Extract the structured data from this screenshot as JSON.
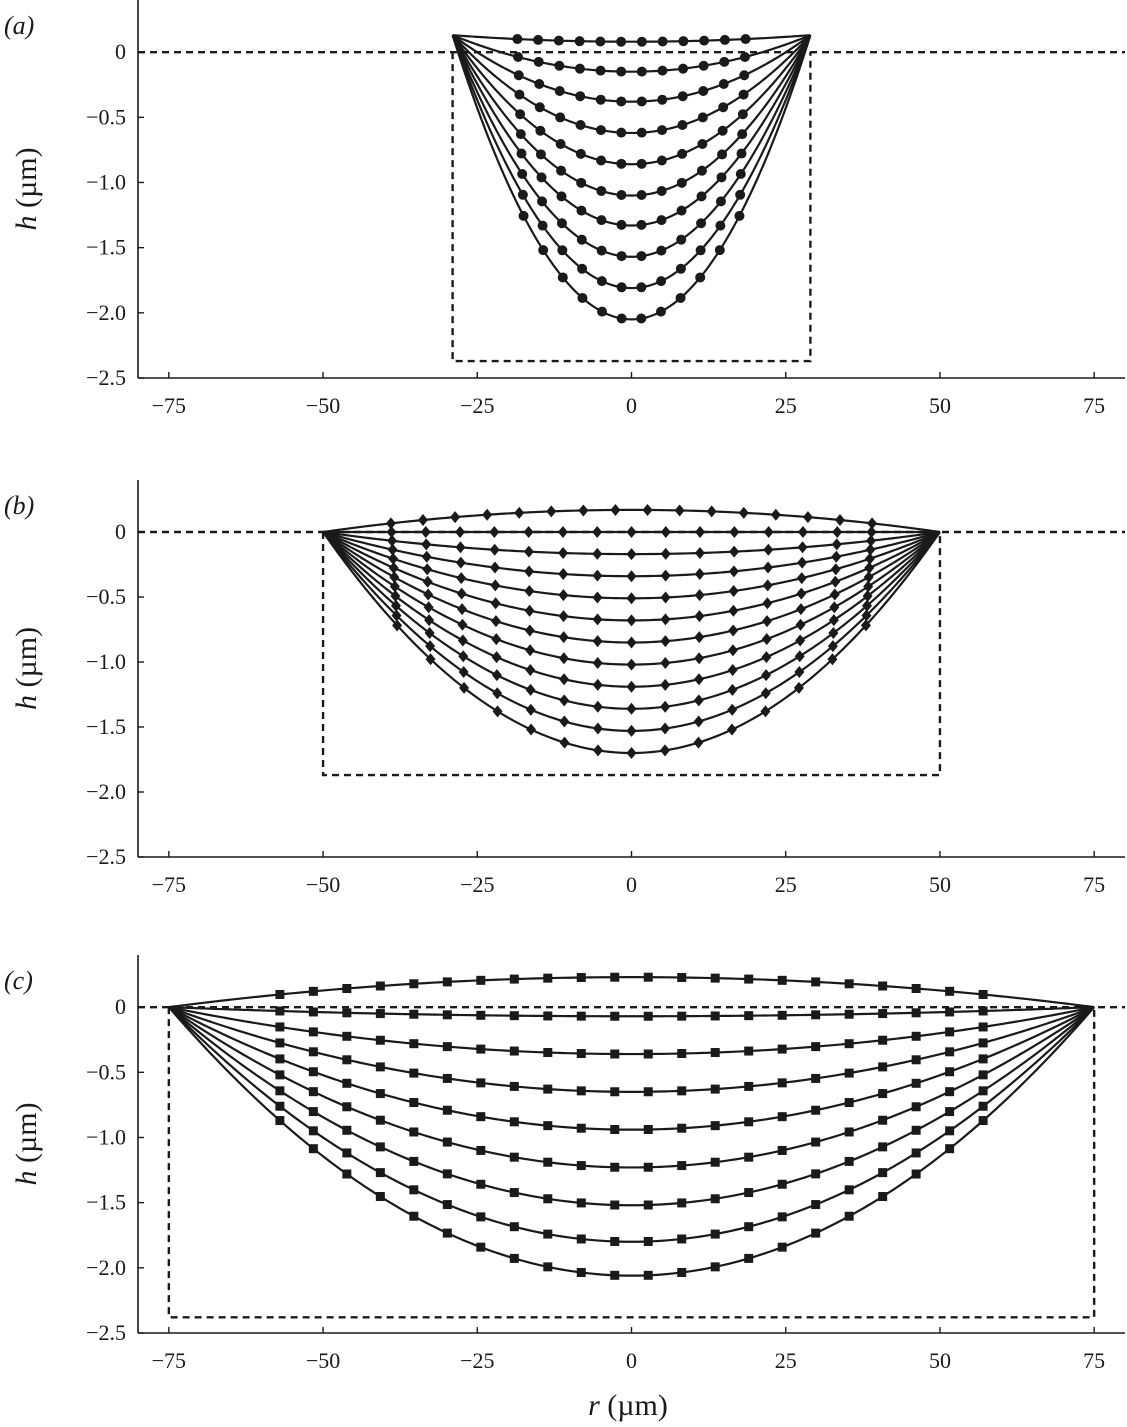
{
  "figure": {
    "xlabel": "r (µm)",
    "ylabel": "h (µm)"
  },
  "chart_data": [
    {
      "type": "line",
      "panel": "(a)",
      "marker": "circle",
      "xlabel": "",
      "ylabel": "h (µm)",
      "xlim": [
        -80,
        80
      ],
      "ylim": [
        -2.5,
        0.4
      ],
      "xticks": [
        -75,
        -50,
        -25,
        0,
        25,
        50,
        75
      ],
      "xtick_labels": [
        "−75",
        "−50",
        "−25",
        "0",
        "25",
        "50",
        "75"
      ],
      "yticks": [
        0,
        -0.5,
        -1.0,
        -1.5,
        -2.0,
        -2.5
      ],
      "ytick_labels": [
        "0",
        "−0.5",
        "−1.0",
        "−1.5",
        "−2.0",
        "−2.5"
      ],
      "reference_box": {
        "x_left": -29,
        "x_right": 29,
        "y_top": 0,
        "y_bottom": -2.37
      },
      "contact_radius": 29,
      "pinned_height": 0.13,
      "marker_span": {
        "first_curve": 18.5,
        "last_curve": 17.5
      },
      "marker_spacing": 3.1,
      "series": [
        {
          "center_depth": 0.08
        },
        {
          "center_depth": -0.15
        },
        {
          "center_depth": -0.38
        },
        {
          "center_depth": -0.62
        },
        {
          "center_depth": -0.86
        },
        {
          "center_depth": -1.1
        },
        {
          "center_depth": -1.33
        },
        {
          "center_depth": -1.57
        },
        {
          "center_depth": -1.81
        },
        {
          "center_depth": -2.05
        }
      ]
    },
    {
      "type": "line",
      "panel": "(b)",
      "marker": "diamond",
      "xlabel": "",
      "ylabel": "h (µm)",
      "xlim": [
        -80,
        80
      ],
      "ylim": [
        -2.5,
        0.4
      ],
      "xticks": [
        -75,
        -50,
        -25,
        0,
        25,
        50,
        75
      ],
      "xtick_labels": [
        "−75",
        "−50",
        "−25",
        "0",
        "25",
        "50",
        "75"
      ],
      "yticks": [
        0,
        -0.5,
        -1.0,
        -1.5,
        -2.0,
        -2.5
      ],
      "ytick_labels": [
        "0",
        "−0.5",
        "−1.0",
        "−1.5",
        "−2.0",
        "−2.5"
      ],
      "reference_box": {
        "x_left": -50,
        "x_right": 50,
        "y_top": 0,
        "y_bottom": -1.87
      },
      "contact_radius": 50,
      "pinned_height": 0.0,
      "marker_span": {
        "first_curve": 39.0,
        "last_curve": 38.0
      },
      "marker_spacing": 5.2,
      "series": [
        {
          "center_depth": 0.17
        },
        {
          "center_depth": 0.0
        },
        {
          "center_depth": -0.17
        },
        {
          "center_depth": -0.34
        },
        {
          "center_depth": -0.51
        },
        {
          "center_depth": -0.68
        },
        {
          "center_depth": -0.85
        },
        {
          "center_depth": -1.02
        },
        {
          "center_depth": -1.19
        },
        {
          "center_depth": -1.36
        },
        {
          "center_depth": -1.53
        },
        {
          "center_depth": -1.7
        }
      ]
    },
    {
      "type": "line",
      "panel": "(c)",
      "marker": "square",
      "xlabel": "r (µm)",
      "ylabel": "h (µm)",
      "xlim": [
        -80,
        80
      ],
      "ylim": [
        -2.5,
        0.4
      ],
      "xticks": [
        -75,
        -50,
        -25,
        0,
        25,
        50,
        75
      ],
      "xtick_labels": [
        "−75",
        "−50",
        "−25",
        "0",
        "25",
        "50",
        "75"
      ],
      "yticks": [
        0,
        -0.5,
        -1.0,
        -1.5,
        -2.0,
        -2.5
      ],
      "ytick_labels": [
        "0",
        "−0.5",
        "−1.0",
        "−1.5",
        "−2.0",
        "−2.5"
      ],
      "reference_box": {
        "x_left": -75,
        "x_right": 75,
        "y_top": 0,
        "y_bottom": -2.38
      },
      "contact_radius": 75,
      "pinned_height": 0.0,
      "marker_span": {
        "first_curve": 57.0,
        "last_curve": 57.0
      },
      "marker_spacing": 5.2,
      "series": [
        {
          "center_depth": 0.23
        },
        {
          "center_depth": -0.07
        },
        {
          "center_depth": -0.36
        },
        {
          "center_depth": -0.65
        },
        {
          "center_depth": -0.94
        },
        {
          "center_depth": -1.23
        },
        {
          "center_depth": -1.52
        },
        {
          "center_depth": -1.8
        },
        {
          "center_depth": -2.06
        }
      ]
    }
  ]
}
